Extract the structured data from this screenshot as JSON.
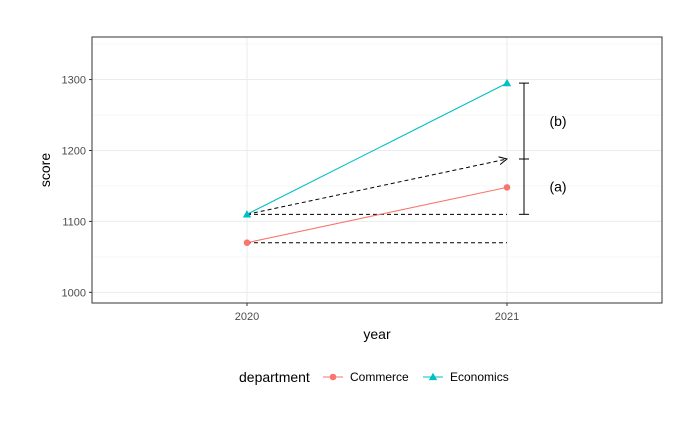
{
  "chart_data": {
    "type": "line",
    "x": [
      "2020",
      "2021"
    ],
    "series": [
      {
        "name": "Commerce",
        "values": [
          1070,
          1148
        ],
        "color": "#F8766D",
        "marker": "circle"
      },
      {
        "name": "Economics",
        "values": [
          1110,
          1295
        ],
        "color": "#00BFC4",
        "marker": "triangle"
      }
    ],
    "xlabel": "year",
    "ylabel": "score",
    "ylim": [
      985,
      1360
    ],
    "yticks": [
      1000,
      1100,
      1200,
      1300
    ],
    "grid": true,
    "legend": {
      "title": "department",
      "position": "bottom"
    },
    "reference_lines": [
      {
        "from": [
          "2020",
          1070
        ],
        "to": [
          "2021",
          1070
        ],
        "style": "dashed"
      },
      {
        "from": [
          "2020",
          1110
        ],
        "to": [
          "2021",
          1110
        ],
        "style": "dashed"
      },
      {
        "from": [
          "2020",
          1110
        ],
        "to": [
          "2021",
          1188
        ],
        "style": "dashed",
        "arrow": true
      }
    ],
    "annotations": [
      {
        "label": "(a)",
        "range": [
          1110,
          1188
        ]
      },
      {
        "label": "(b)",
        "range": [
          1188,
          1295
        ]
      }
    ]
  }
}
